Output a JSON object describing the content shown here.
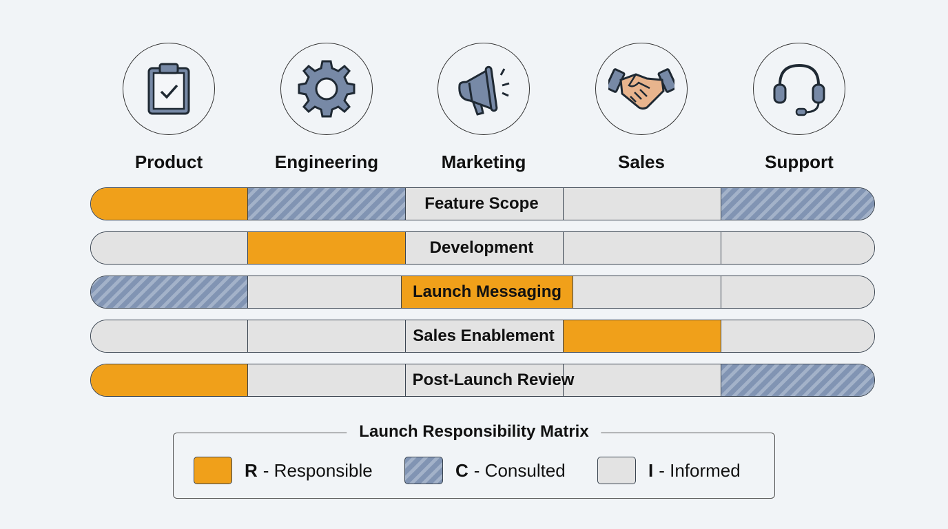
{
  "colors": {
    "responsible": "#f0a01a",
    "consulted": "#8194b3",
    "informed": "#e3e3e3",
    "background": "#f1f4f7"
  },
  "teams": [
    {
      "label": "Product",
      "icon": "clipboard-check-icon"
    },
    {
      "label": "Engineering",
      "icon": "gear-icon"
    },
    {
      "label": "Marketing",
      "icon": "megaphone-icon"
    },
    {
      "label": "Sales",
      "icon": "handshake-icon"
    },
    {
      "label": "Support",
      "icon": "headset-icon"
    }
  ],
  "tasks": [
    {
      "label": "Feature Scope",
      "roles": [
        "R",
        "C",
        "I",
        "I",
        "C"
      ]
    },
    {
      "label": "Development",
      "roles": [
        "I",
        "R",
        "I",
        "I",
        "I"
      ]
    },
    {
      "label": "Launch Messaging",
      "roles": [
        "C",
        "I",
        "R",
        "I",
        "I"
      ]
    },
    {
      "label": "Sales Enablement",
      "roles": [
        "I",
        "I",
        "I",
        "R",
        "I"
      ]
    },
    {
      "label": "Post-Launch Review",
      "roles": [
        "R",
        "I",
        "I",
        "I",
        "C"
      ]
    }
  ],
  "legend": {
    "title": "Launch Responsibility Matrix",
    "items": [
      {
        "key": "R",
        "text": " - Responsible"
      },
      {
        "key": "C",
        "text": " - Consulted"
      },
      {
        "key": "I",
        "text": " - Informed"
      }
    ]
  }
}
